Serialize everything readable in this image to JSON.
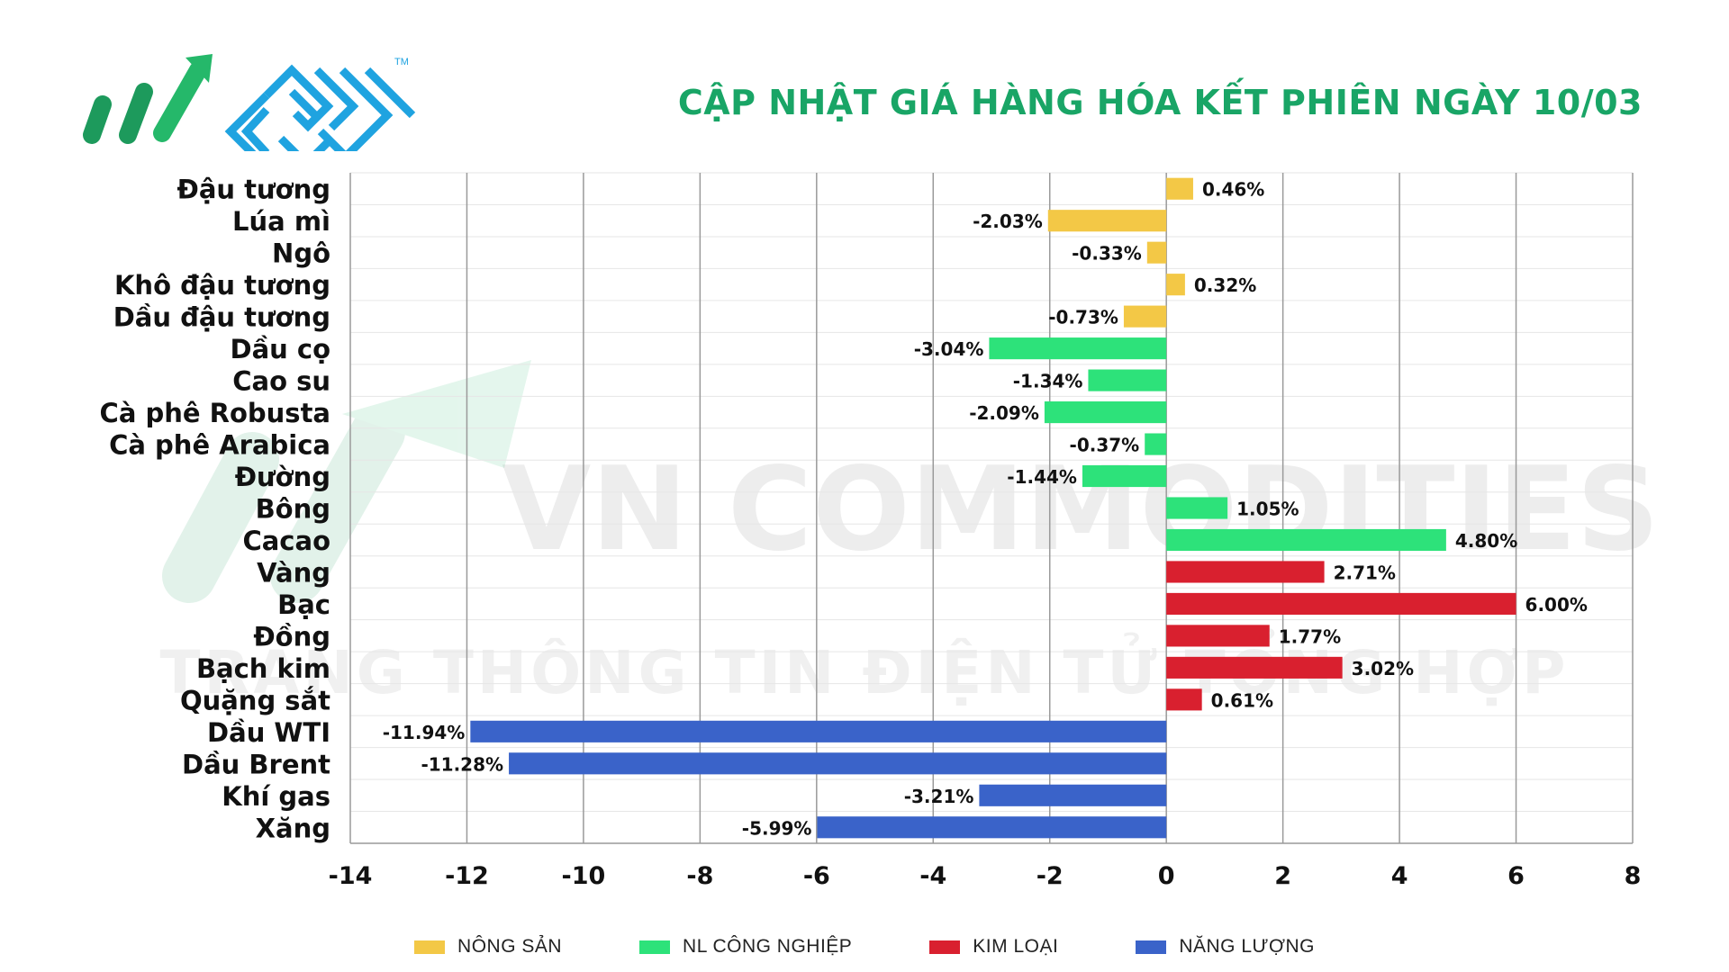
{
  "header": {
    "title": "CẬP NHẬT GIÁ HÀNG HÓA KẾT PHIÊN NGÀY 10/03",
    "trademark": "TM"
  },
  "watermark": {
    "line1": "VN COMMODITIES",
    "line2": "TRANG THÔNG TIN ĐIỆN TỬ TỔNG HỢP"
  },
  "colors": {
    "title": "#19a566",
    "nong_san": "#f3c846",
    "nl_cong_nghiep": "#2de27a",
    "kim_loai": "#d9202f",
    "nang_luong": "#3a63c9",
    "grid": "#9a9a9a",
    "logo_green": "#1d9a5c",
    "logo_blue": "#1fa3e0"
  },
  "chart_data": {
    "type": "bar",
    "orientation": "horizontal",
    "title": "CẬP NHẬT GIÁ HÀNG HÓA KẾT PHIÊN NGÀY 10/03",
    "xlim": [
      -14,
      8
    ],
    "xticks": [
      -14,
      -12,
      -10,
      -8,
      -6,
      -4,
      -2,
      0,
      2,
      4,
      6,
      8
    ],
    "grid": true,
    "legend_position": "bottom",
    "categories": [
      "Đậu tương",
      "Lúa mì",
      "Ngô",
      "Khô đậu tương",
      "Dầu đậu tương",
      "Dầu cọ",
      "Cao su",
      "Cà phê Robusta",
      "Cà phê Arabica",
      "Đường",
      "Bông",
      "Cacao",
      "Vàng",
      "Bạc",
      "Đồng",
      "Bạch kim",
      "Quặng sắt",
      "Dầu WTI",
      "Dầu Brent",
      "Khí gas",
      "Xăng"
    ],
    "values": [
      0.46,
      -2.03,
      -0.33,
      0.32,
      -0.73,
      -3.04,
      -1.34,
      -2.09,
      -0.37,
      -1.44,
      1.05,
      4.8,
      2.71,
      6.0,
      1.77,
      3.02,
      0.61,
      -11.94,
      -11.28,
      -3.21,
      -5.99
    ],
    "labels": [
      "0.46%",
      "-2.03%",
      "-0.33%",
      "0.32%",
      "-0.73%",
      "-3.04%",
      "-1.34%",
      "-2.09%",
      "-0.37%",
      "-1.44%",
      "1.05%",
      "4.80%",
      "2.71%",
      "6.00%",
      "1.77%",
      "3.02%",
      "0.61%",
      "-11.94%",
      "-11.28%",
      "-3.21%",
      "-5.99%"
    ],
    "groups": [
      "nong_san",
      "nong_san",
      "nong_san",
      "nong_san",
      "nong_san",
      "nl_cong_nghiep",
      "nl_cong_nghiep",
      "nl_cong_nghiep",
      "nl_cong_nghiep",
      "nl_cong_nghiep",
      "nl_cong_nghiep",
      "nl_cong_nghiep",
      "kim_loai",
      "kim_loai",
      "kim_loai",
      "kim_loai",
      "kim_loai",
      "nang_luong",
      "nang_luong",
      "nang_luong",
      "nang_luong"
    ],
    "legend": [
      {
        "key": "nong_san",
        "name": "NÔNG SẢN"
      },
      {
        "key": "nl_cong_nghiep",
        "name": "NL CÔNG NGHIỆP"
      },
      {
        "key": "kim_loai",
        "name": "KIM LOẠI"
      },
      {
        "key": "nang_luong",
        "name": "NĂNG LƯỢNG"
      }
    ]
  }
}
